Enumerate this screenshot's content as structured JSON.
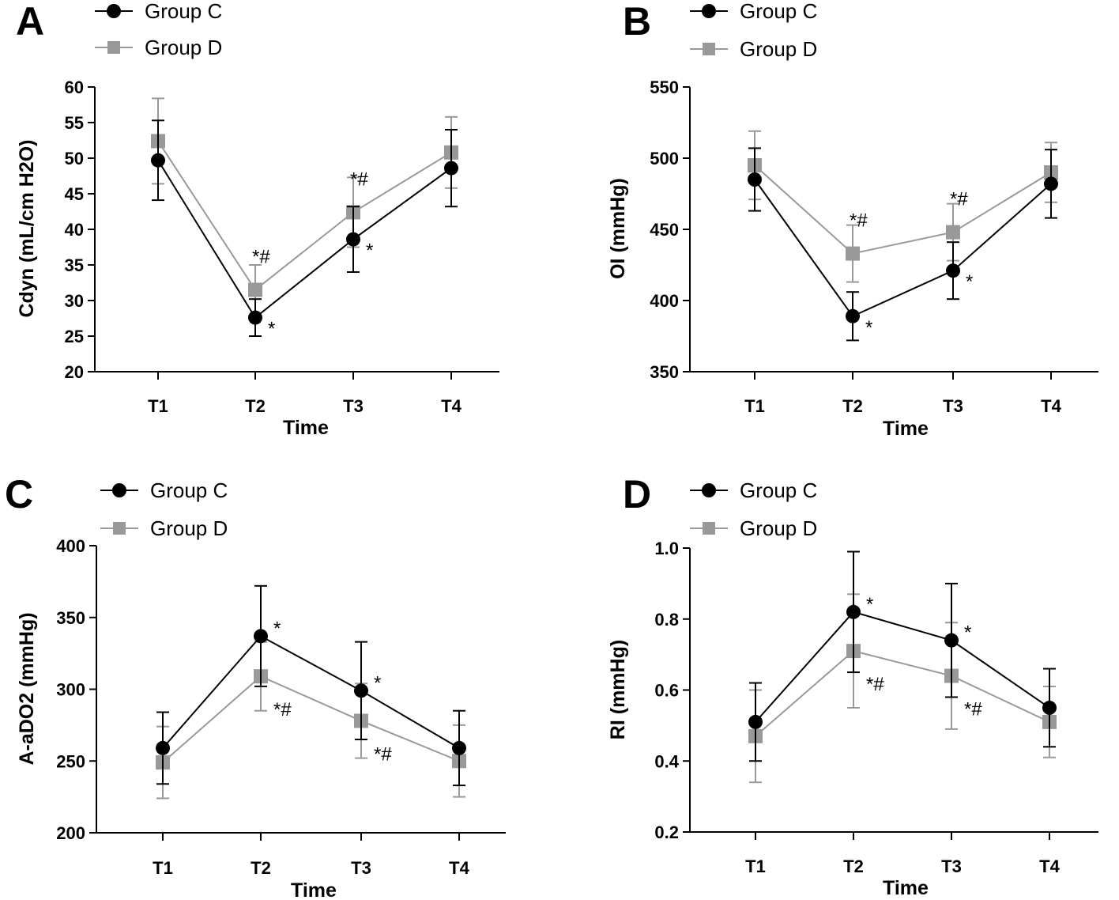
{
  "colors": {
    "group_c": "#000000",
    "group_d": "#999999"
  },
  "legend": {
    "group_c": "Group C",
    "group_d": "Group D"
  },
  "chart_data": [
    {
      "panel": "A",
      "type": "line",
      "title": "",
      "xlabel": "Time",
      "ylabel": "Cdyn (mL/cm H2O)",
      "categories": [
        "T1",
        "T2",
        "T3",
        "T4"
      ],
      "ylim": [
        20,
        60
      ],
      "yticks": [
        20,
        25,
        30,
        35,
        40,
        45,
        50,
        55,
        60
      ],
      "series": [
        {
          "name": "Group C",
          "values": [
            49.7,
            27.6,
            38.6,
            48.6
          ],
          "err": [
            5.6,
            2.6,
            4.6,
            5.4
          ],
          "annotations": [
            "",
            "*",
            "*",
            ""
          ]
        },
        {
          "name": "Group D",
          "values": [
            52.4,
            31.5,
            42.4,
            50.8
          ],
          "err": [
            6.0,
            3.5,
            4.9,
            5.0
          ],
          "annotations": [
            "",
            "*#",
            "*#",
            ""
          ]
        }
      ]
    },
    {
      "panel": "B",
      "type": "line",
      "title": "",
      "xlabel": "Time",
      "ylabel": "OI (mmHg)",
      "categories": [
        "T1",
        "T2",
        "T3",
        "T4"
      ],
      "ylim": [
        350,
        550
      ],
      "yticks": [
        350,
        400,
        450,
        500,
        550
      ],
      "series": [
        {
          "name": "Group C",
          "values": [
            485,
            389,
            421,
            482
          ],
          "err": [
            22,
            17,
            20,
            24
          ],
          "annotations": [
            "",
            "*",
            "*",
            ""
          ]
        },
        {
          "name": "Group D",
          "values": [
            495,
            433,
            448,
            490
          ],
          "err": [
            24,
            20,
            20,
            21
          ],
          "annotations": [
            "",
            "*#",
            "*#",
            ""
          ]
        }
      ]
    },
    {
      "panel": "C",
      "type": "line",
      "title": "",
      "xlabel": "Time",
      "ylabel": "A-aDO2 (mmHg)",
      "categories": [
        "T1",
        "T2",
        "T3",
        "T4"
      ],
      "ylim": [
        200,
        400
      ],
      "yticks": [
        200,
        250,
        300,
        350,
        400
      ],
      "series": [
        {
          "name": "Group C",
          "values": [
            259,
            337,
            299,
            259
          ],
          "err": [
            25,
            35,
            34,
            26
          ],
          "annotations": [
            "",
            "*",
            "*",
            ""
          ]
        },
        {
          "name": "Group D",
          "values": [
            249,
            309,
            278,
            250
          ],
          "err": [
            25,
            24,
            26,
            25
          ],
          "annotations": [
            "",
            "*#",
            "*#",
            ""
          ]
        }
      ]
    },
    {
      "panel": "D",
      "type": "line",
      "title": "",
      "xlabel": "Time",
      "ylabel": "RI (mmHg)",
      "categories": [
        "T1",
        "T2",
        "T3",
        "T4"
      ],
      "ylim": [
        0.2,
        1.0
      ],
      "yticks": [
        0.2,
        0.4,
        0.6,
        0.8,
        1.0
      ],
      "series": [
        {
          "name": "Group C",
          "values": [
            0.51,
            0.82,
            0.74,
            0.55
          ],
          "err": [
            0.11,
            0.17,
            0.16,
            0.11
          ],
          "annotations": [
            "",
            "*",
            "*",
            ""
          ]
        },
        {
          "name": "Group D",
          "values": [
            0.47,
            0.71,
            0.64,
            0.51
          ],
          "err": [
            0.13,
            0.16,
            0.15,
            0.1
          ],
          "annotations": [
            "",
            "*#",
            "*#",
            ""
          ]
        }
      ]
    }
  ]
}
